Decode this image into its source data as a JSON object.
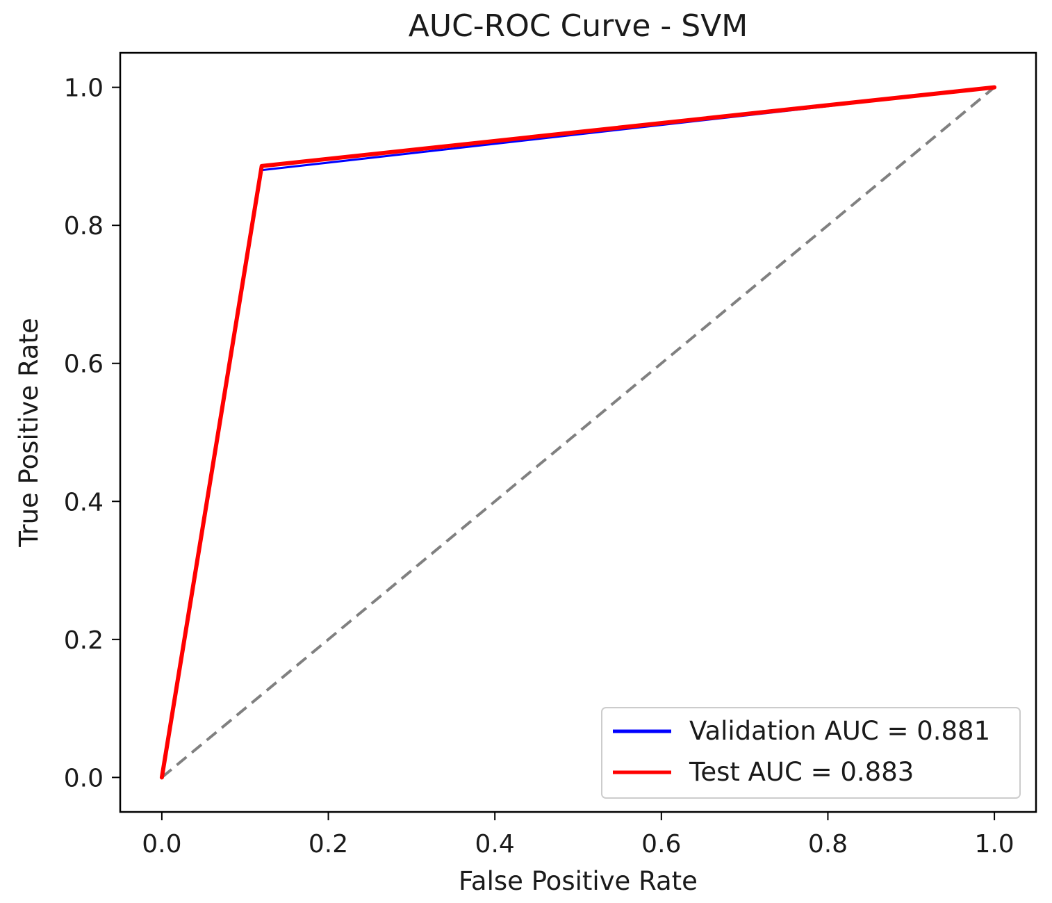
{
  "chart_data": {
    "type": "line",
    "title": "AUC-ROC Curve - SVM",
    "xlabel": "False Positive Rate",
    "ylabel": "True Positive Rate",
    "xlim": [
      -0.05,
      1.05
    ],
    "ylim": [
      -0.05,
      1.05
    ],
    "xticks": [
      0.0,
      0.2,
      0.4,
      0.6,
      0.8,
      1.0
    ],
    "yticks": [
      0.0,
      0.2,
      0.4,
      0.6,
      0.8,
      1.0
    ],
    "xtick_labels": [
      "0.0",
      "0.2",
      "0.4",
      "0.6",
      "0.8",
      "1.0"
    ],
    "ytick_labels": [
      "0.0",
      "0.2",
      "0.4",
      "0.6",
      "0.8",
      "1.0"
    ],
    "grid": false,
    "legend_position": "lower-right",
    "series": [
      {
        "name": "Validation AUC = 0.881",
        "color": "#0000ff",
        "x": [
          0.0,
          0.12,
          1.0
        ],
        "y": [
          0.0,
          0.88,
          1.0
        ]
      },
      {
        "name": "Test AUC = 0.883",
        "color": "#ff0000",
        "x": [
          0.0,
          0.12,
          1.0
        ],
        "y": [
          0.0,
          0.886,
          1.0
        ]
      }
    ],
    "reference_line": {
      "color": "#808080",
      "style": "dashed",
      "x": [
        0.0,
        1.0
      ],
      "y": [
        0.0,
        1.0
      ]
    }
  }
}
